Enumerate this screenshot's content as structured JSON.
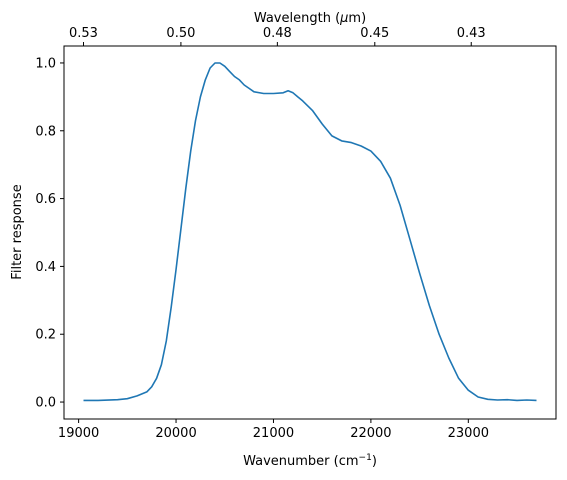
{
  "chart_data": {
    "type": "line",
    "xlabel_base": "Wavenumber (cm",
    "xlabel_sup": "−1",
    "xlabel_tail": ")",
    "ylabel": "Filter response",
    "top_xlabel_base": "Wavelength (",
    "top_xlabel_mu": "μ",
    "top_xlabel_tail": "m)",
    "xlim": [
      18850,
      23900
    ],
    "ylim": [
      -0.05,
      1.05
    ],
    "xticks": [
      {
        "value": 19000,
        "label": "19000"
      },
      {
        "value": 20000,
        "label": "20000"
      },
      {
        "value": 21000,
        "label": "21000"
      },
      {
        "value": 22000,
        "label": "22000"
      },
      {
        "value": 23000,
        "label": "23000"
      }
    ],
    "yticks": [
      {
        "value": 0.0,
        "label": "0.0"
      },
      {
        "value": 0.2,
        "label": "0.2"
      },
      {
        "value": 0.4,
        "label": "0.4"
      },
      {
        "value": 0.6,
        "label": "0.6"
      },
      {
        "value": 0.8,
        "label": "0.8"
      },
      {
        "value": 1.0,
        "label": "1.0"
      }
    ],
    "top_xticks": [
      {
        "value": 19050,
        "label": "0.53"
      },
      {
        "value": 20050,
        "label": "0.50"
      },
      {
        "value": 21040,
        "label": "0.48"
      },
      {
        "value": 22040,
        "label": "0.45"
      },
      {
        "value": 23030,
        "label": "0.43"
      }
    ],
    "series": [
      {
        "color": "#1f77b4",
        "x": [
          19050,
          19200,
          19400,
          19500,
          19600,
          19700,
          19750,
          19800,
          19850,
          19900,
          19950,
          20000,
          20050,
          20100,
          20150,
          20200,
          20250,
          20300,
          20350,
          20400,
          20450,
          20500,
          20550,
          20600,
          20650,
          20700,
          20750,
          20800,
          20900,
          21000,
          21100,
          21150,
          21200,
          21250,
          21300,
          21400,
          21500,
          21600,
          21700,
          21800,
          21900,
          22000,
          22100,
          22200,
          22300,
          22400,
          22500,
          22600,
          22700,
          22800,
          22900,
          23000,
          23100,
          23200,
          23300,
          23400,
          23500,
          23600,
          23700
        ],
        "y": [
          0.005,
          0.005,
          0.007,
          0.01,
          0.018,
          0.03,
          0.045,
          0.07,
          0.11,
          0.18,
          0.28,
          0.39,
          0.51,
          0.63,
          0.74,
          0.83,
          0.9,
          0.95,
          0.985,
          1.0,
          1.0,
          0.99,
          0.975,
          0.96,
          0.95,
          0.935,
          0.925,
          0.915,
          0.91,
          0.91,
          0.912,
          0.918,
          0.912,
          0.9,
          0.888,
          0.86,
          0.82,
          0.785,
          0.77,
          0.765,
          0.755,
          0.74,
          0.71,
          0.66,
          0.58,
          0.48,
          0.38,
          0.285,
          0.2,
          0.13,
          0.07,
          0.035,
          0.015,
          0.008,
          0.006,
          0.007,
          0.005,
          0.006,
          0.005
        ]
      }
    ]
  }
}
